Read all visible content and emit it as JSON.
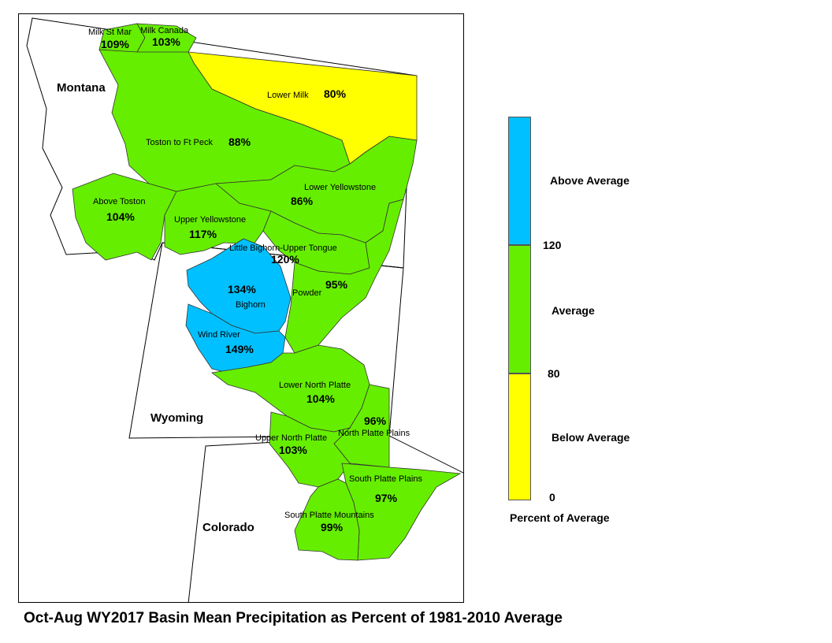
{
  "title": "Oct-Aug WY2017 Basin Mean Precipitation as Percent of 1981-2010 Average",
  "colors": {
    "above": "#00c0ff",
    "average": "#66ee00",
    "below": "#ffff00"
  },
  "states": {
    "montana": "Montana",
    "wyoming": "Wyoming",
    "colorado": "Colorado"
  },
  "basins": {
    "milk_st_mary": {
      "name": "Milk St Mar",
      "pct": "109%",
      "category": "average"
    },
    "milk_canada": {
      "name": "Milk Canada",
      "pct": "103%",
      "category": "average"
    },
    "lower_milk": {
      "name": "Lower Milk",
      "pct": "80%",
      "category": "below"
    },
    "toston_ft_peck": {
      "name": "Toston to Ft Peck",
      "pct": "88%",
      "category": "average"
    },
    "above_toston": {
      "name": "Above Toston",
      "pct": "104%",
      "category": "average"
    },
    "lower_yellowstone": {
      "name": "Lower Yellowstone",
      "pct": "86%",
      "category": "average"
    },
    "upper_yellowstone": {
      "name": "Upper Yellowstone",
      "pct": "117%",
      "category": "average"
    },
    "little_bighorn": {
      "name": "Little Bighorn-Upper Tongue",
      "pct": "120%",
      "category": "average"
    },
    "bighorn": {
      "name": "Bighorn",
      "pct": "134%",
      "category": "above"
    },
    "powder": {
      "name": "Powder",
      "pct": "95%",
      "category": "average"
    },
    "wind_river": {
      "name": "Wind River",
      "pct": "149%",
      "category": "above"
    },
    "lower_north_platte": {
      "name": "Lower North Platte",
      "pct": "104%",
      "category": "average"
    },
    "north_platte_plains": {
      "name": "North Platte Plains",
      "pct": "96%",
      "category": "average"
    },
    "upper_north_platte": {
      "name": "Upper North Platte",
      "pct": "103%",
      "category": "average"
    },
    "south_platte_plains": {
      "name": "South Platte Plains",
      "pct": "97%",
      "category": "average"
    },
    "south_platte_mountains": {
      "name": "South Platte Mountains",
      "pct": "99%",
      "category": "average"
    }
  },
  "legend": {
    "above_label": "Above Average",
    "average_label": "Average",
    "below_label": "Below Average",
    "tick_high": "120",
    "tick_low": "80",
    "tick_zero": "0",
    "caption": "Percent of Average"
  }
}
